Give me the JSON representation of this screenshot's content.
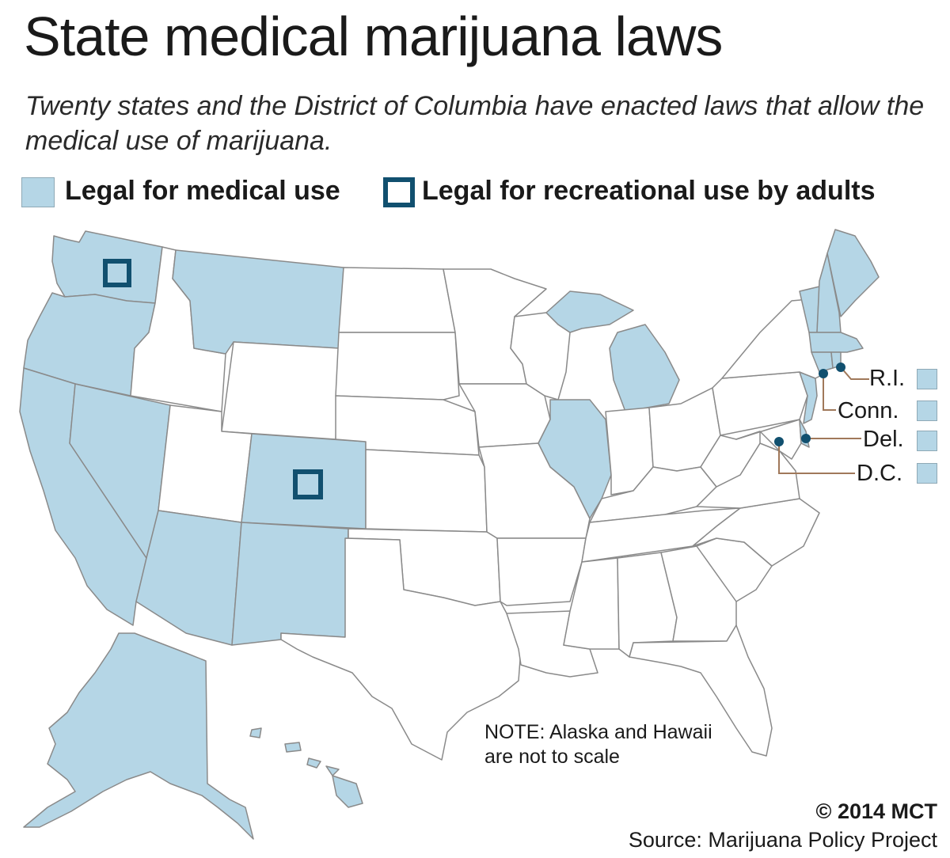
{
  "title": "State medical marijuana laws",
  "subtitle": "Twenty states and the District of Columbia have enacted laws that allow the medical use of marijuana.",
  "legend": {
    "medical": "Legal for medical use",
    "recreational": "Legal for recreational use by adults"
  },
  "colors": {
    "medical_fill": "#b5d6e6",
    "recreational_outline": "#11506f",
    "other_fill": "#ffffff",
    "border": "#8a8a8a",
    "callout_line": "#a0785a"
  },
  "map": {
    "medical_states": [
      "Washington",
      "Oregon",
      "California",
      "Nevada",
      "Montana",
      "Arizona",
      "Colorado",
      "New Mexico",
      "Alaska",
      "Hawaii",
      "Illinois",
      "Michigan",
      "Maine",
      "Vermont",
      "New Hampshire",
      "Massachusetts",
      "New Jersey",
      "Rhode Island",
      "Connecticut",
      "Delaware",
      "District of Columbia"
    ],
    "recreational_states": [
      "Washington",
      "Colorado"
    ],
    "callouts": [
      {
        "label": "R.I."
      },
      {
        "label": "Conn."
      },
      {
        "label": "Del."
      },
      {
        "label": "D.C."
      }
    ]
  },
  "note": {
    "line1": "NOTE: Alaska and Hawaii",
    "line2": "are not to scale"
  },
  "credit": "© 2014 MCT",
  "source": "Source: Marijuana Policy Project"
}
